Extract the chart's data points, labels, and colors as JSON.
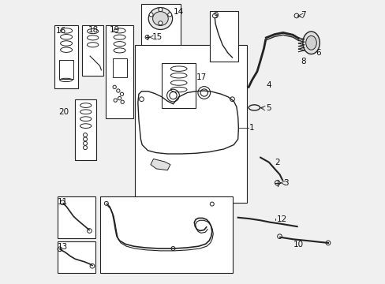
{
  "bg_color": "#f0f0f0",
  "line_color": "#222222",
  "box_color": "#ffffff",
  "fig_w": 4.89,
  "fig_h": 3.6,
  "dpi": 100
}
